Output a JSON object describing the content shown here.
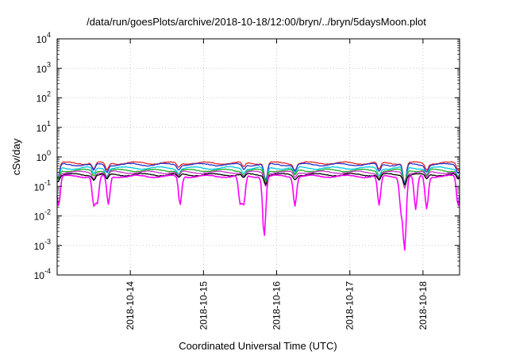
{
  "chart_data": {
    "type": "line",
    "title": "/data/run/goesPlots/archive/2018-10-18/12:00/bryn/../bryn/5daysMoon.plot",
    "xlabel": "Coordinated Universal Time (UTC)",
    "ylabel": "cSv/day",
    "yscale": "log",
    "ylim_exponents": [
      -4,
      4
    ],
    "y_ticks": [
      {
        "base": "10",
        "exp": "-4"
      },
      {
        "base": "10",
        "exp": "-3"
      },
      {
        "base": "10",
        "exp": "-2"
      },
      {
        "base": "10",
        "exp": "-1"
      },
      {
        "base": "10",
        "exp": "0"
      },
      {
        "base": "10",
        "exp": "1"
      },
      {
        "base": "10",
        "exp": "2"
      },
      {
        "base": "10",
        "exp": "3"
      },
      {
        "base": "10",
        "exp": "4"
      }
    ],
    "xlim": [
      "2018-10-13 00:00",
      "2018-10-18 12:00"
    ],
    "x_ticks": [
      "2018-10-14",
      "2018-10-15",
      "2018-10-16",
      "2018-10-17",
      "2018-10-18"
    ],
    "grid": true,
    "series": [
      {
        "color": "#e8262a",
        "baseline": 0.62,
        "dips": [
          [
            0.01,
            0.3
          ],
          [
            0.5,
            0.6
          ],
          [
            0.68,
            0.55
          ],
          [
            1.66,
            0.7
          ],
          [
            2.55,
            0.7
          ],
          [
            2.85,
            0.25
          ],
          [
            3.25,
            0.6
          ],
          [
            4.4,
            0.55
          ],
          [
            4.75,
            0.2
          ],
          [
            5.05,
            0.6
          ],
          [
            5.48,
            0.55
          ]
        ]
      },
      {
        "color": "#2233cc",
        "baseline": 0.55,
        "dips": [
          [
            0.01,
            0.3
          ],
          [
            0.5,
            0.6
          ],
          [
            0.68,
            0.55
          ],
          [
            1.66,
            0.7
          ],
          [
            2.55,
            0.7
          ],
          [
            2.85,
            0.25
          ],
          [
            3.25,
            0.6
          ],
          [
            4.4,
            0.55
          ],
          [
            4.75,
            0.2
          ],
          [
            5.05,
            0.6
          ],
          [
            5.48,
            0.55
          ]
        ]
      },
      {
        "color": "#00c8e0",
        "baseline": 0.42,
        "dips": [
          [
            0.01,
            0.4
          ],
          [
            0.5,
            0.6
          ],
          [
            0.68,
            0.55
          ],
          [
            1.66,
            0.7
          ],
          [
            2.55,
            0.7
          ],
          [
            2.85,
            0.3
          ],
          [
            3.25,
            0.6
          ],
          [
            4.4,
            0.55
          ],
          [
            4.75,
            0.25
          ],
          [
            5.05,
            0.6
          ],
          [
            5.48,
            0.55
          ]
        ]
      },
      {
        "color": "#22aa22",
        "baseline": 0.35,
        "dips": [
          [
            0.01,
            0.5
          ],
          [
            0.5,
            0.65
          ],
          [
            0.68,
            0.6
          ],
          [
            1.66,
            0.7
          ],
          [
            2.55,
            0.7
          ],
          [
            2.85,
            0.35
          ],
          [
            3.25,
            0.65
          ],
          [
            4.4,
            0.6
          ],
          [
            4.75,
            0.3
          ],
          [
            5.05,
            0.65
          ],
          [
            5.48,
            0.6
          ]
        ]
      },
      {
        "color": "#cc33cc",
        "baseline": 0.3,
        "dips": [
          [
            0.01,
            0.5
          ],
          [
            0.5,
            0.65
          ],
          [
            0.68,
            0.6
          ],
          [
            1.66,
            0.7
          ],
          [
            2.55,
            0.7
          ],
          [
            2.85,
            0.35
          ],
          [
            3.25,
            0.65
          ],
          [
            4.4,
            0.6
          ],
          [
            4.75,
            0.3
          ],
          [
            5.05,
            0.65
          ],
          [
            5.48,
            0.6
          ]
        ]
      },
      {
        "color": "#000000",
        "baseline": 0.25,
        "dips": [
          [
            0.01,
            0.6
          ],
          [
            0.5,
            0.7
          ],
          [
            0.68,
            0.65
          ],
          [
            1.66,
            0.75
          ],
          [
            2.55,
            0.75
          ],
          [
            2.85,
            0.5
          ],
          [
            3.25,
            0.7
          ],
          [
            4.4,
            0.65
          ],
          [
            4.75,
            0.5
          ],
          [
            5.05,
            0.7
          ],
          [
            5.48,
            0.65
          ]
        ]
      },
      {
        "color": "#ff00ff",
        "baseline": 0.22,
        "dips": [
          [
            0.02,
            0.1
          ],
          [
            0.5,
            0.11
          ],
          [
            0.55,
            0.13
          ],
          [
            0.7,
            0.11
          ],
          [
            1.68,
            0.11
          ],
          [
            2.5,
            0.12
          ],
          [
            2.55,
            0.11
          ],
          [
            2.83,
            0.01
          ],
          [
            3.25,
            0.11
          ],
          [
            4.4,
            0.1
          ],
          [
            4.7,
            0.08
          ],
          [
            4.75,
            0.004
          ],
          [
            4.9,
            0.07
          ],
          [
            5.05,
            0.08
          ],
          [
            5.48,
            0.1
          ]
        ]
      }
    ]
  }
}
